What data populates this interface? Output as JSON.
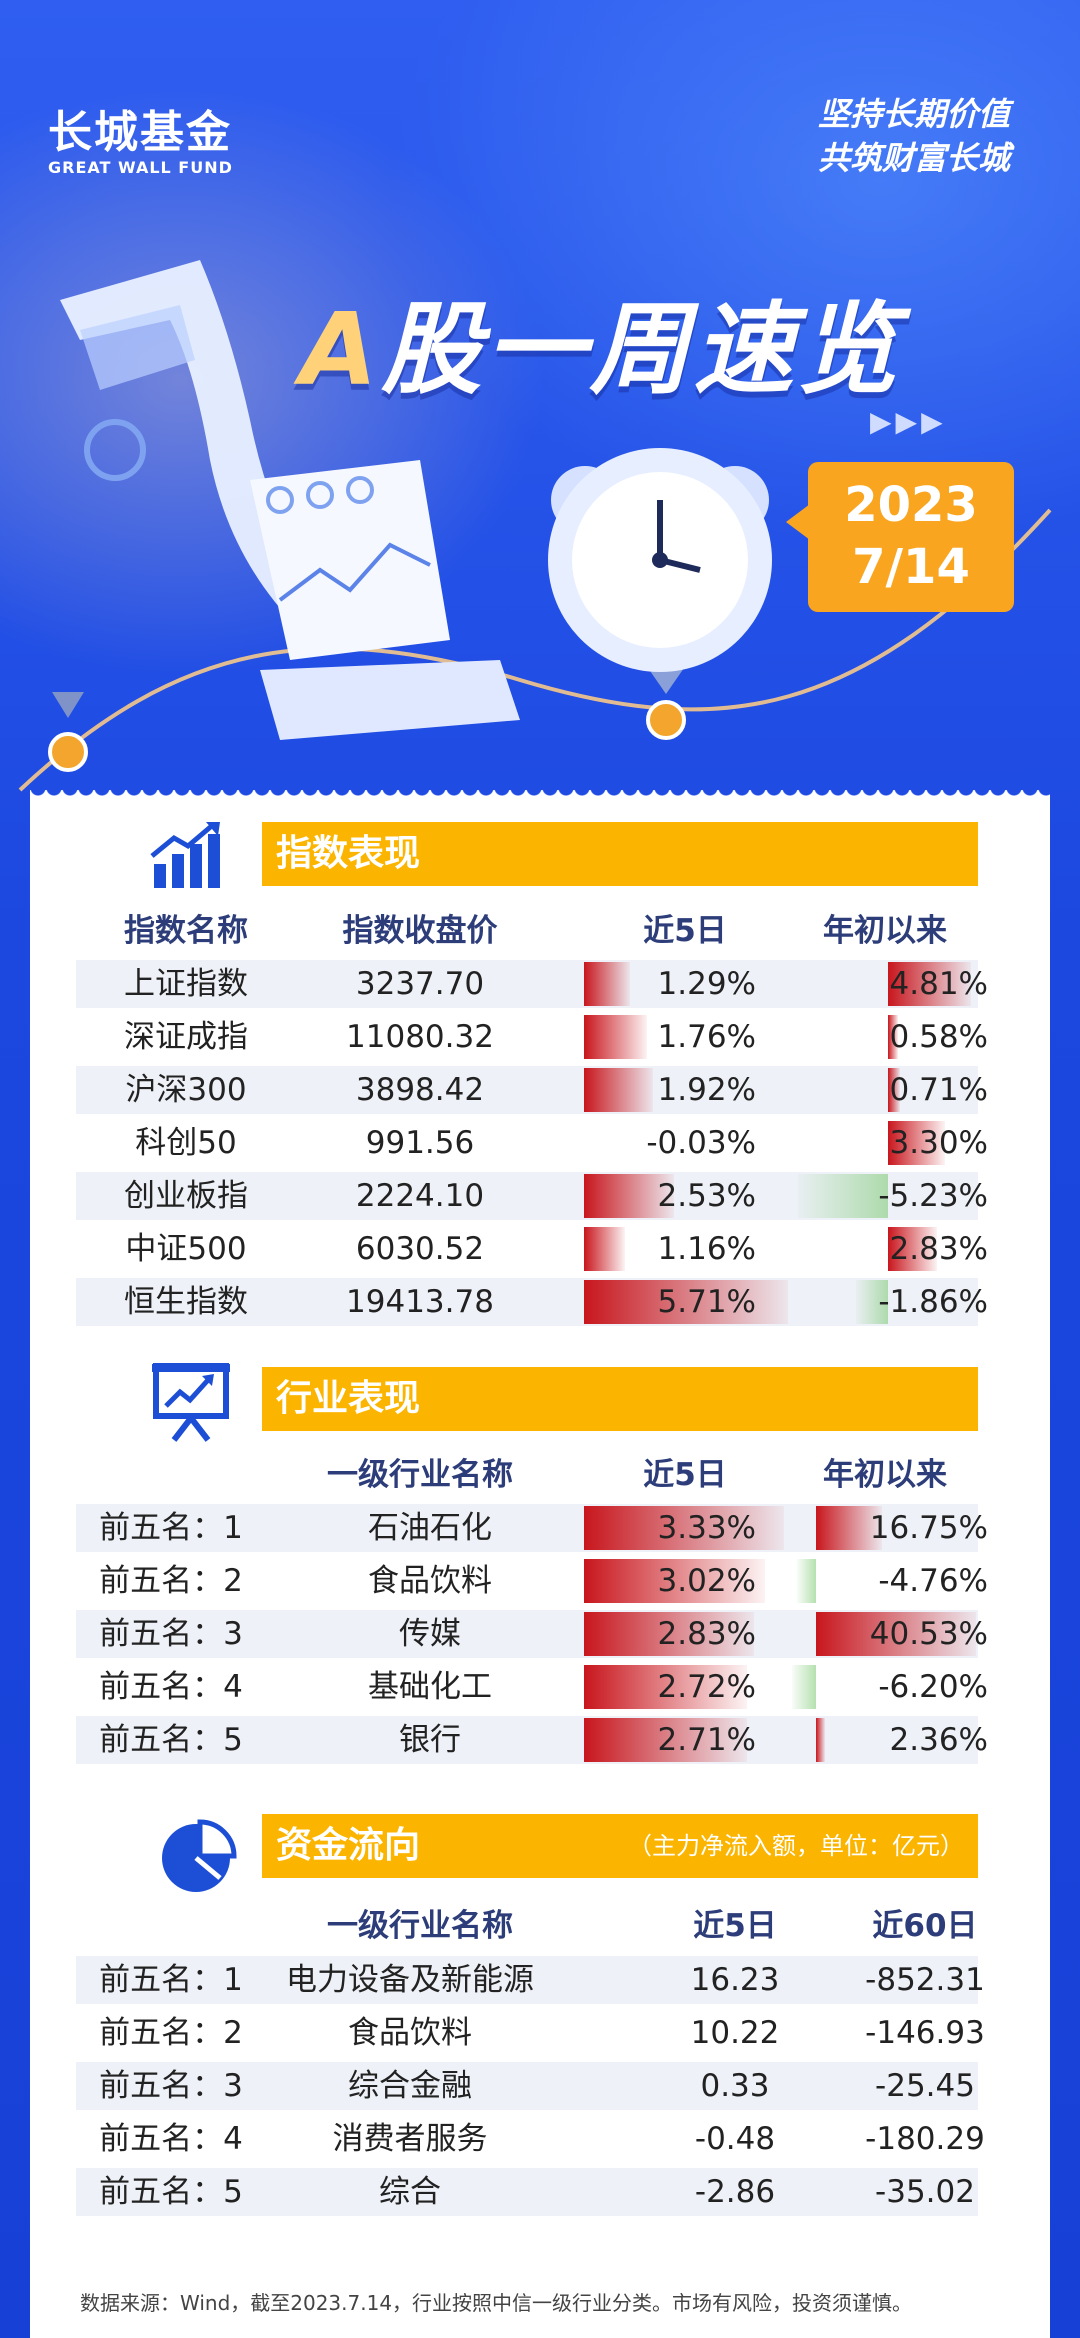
{
  "brand": {
    "name_cn": "长城基金",
    "name_en": "GREAT WALL FUND"
  },
  "slogan": [
    "坚持长期价值",
    "共筑财富长城"
  ],
  "headline": {
    "prefix": "A",
    "rest": "股一周速览"
  },
  "date": {
    "year": "2023",
    "day": "7/14"
  },
  "colors": {
    "background": "#1f52e6",
    "accent": "#fbb500",
    "date_box": "#f9a51f",
    "up": "#c8161d",
    "down": "#5fbf5a",
    "header_text": "#2d3d7a"
  },
  "index_section": {
    "icon": "bar-chart-growth-icon",
    "title": "指数表现",
    "headers": [
      "指数名称",
      "指数收盘价",
      "近5日",
      "年初以来"
    ],
    "rows": [
      {
        "name": "上证指数",
        "close": "3237.70",
        "w5": "1.29%",
        "ytd": "4.81%",
        "w5_val": 1.29,
        "ytd_val": 4.81
      },
      {
        "name": "深证成指",
        "close": "11080.32",
        "w5": "1.76%",
        "ytd": "0.58%",
        "w5_val": 1.76,
        "ytd_val": 0.58
      },
      {
        "name": "沪深300",
        "close": "3898.42",
        "w5": "1.92%",
        "ytd": "0.71%",
        "w5_val": 1.92,
        "ytd_val": 0.71
      },
      {
        "name": "科创50",
        "close": "991.56",
        "w5": "-0.03%",
        "ytd": "3.30%",
        "w5_val": -0.03,
        "ytd_val": 3.3
      },
      {
        "name": "创业板指",
        "close": "2224.10",
        "w5": "2.53%",
        "ytd": "-5.23%",
        "w5_val": 2.53,
        "ytd_val": -5.23
      },
      {
        "name": "中证500",
        "close": "6030.52",
        "w5": "1.16%",
        "ytd": "2.83%",
        "w5_val": 1.16,
        "ytd_val": 2.83
      },
      {
        "name": "恒生指数",
        "close": "19413.78",
        "w5": "5.71%",
        "ytd": "-1.86%",
        "w5_val": 5.71,
        "ytd_val": -1.86
      }
    ]
  },
  "industry_section": {
    "icon": "presentation-board-icon",
    "title": "行业表现",
    "headers": [
      "一级行业名称",
      "近5日",
      "年初以来"
    ],
    "rows": [
      {
        "rank": "前五名：1",
        "name": "石油石化",
        "w5": "3.33%",
        "ytd": "16.75%",
        "w5_val": 3.33,
        "ytd_val": 16.75
      },
      {
        "rank": "前五名：2",
        "name": "食品饮料",
        "w5": "3.02%",
        "ytd": "-4.76%",
        "w5_val": 3.02,
        "ytd_val": -4.76
      },
      {
        "rank": "前五名：3",
        "name": "传媒",
        "w5": "2.83%",
        "ytd": "40.53%",
        "w5_val": 2.83,
        "ytd_val": 40.53
      },
      {
        "rank": "前五名：4",
        "name": "基础化工",
        "w5": "2.72%",
        "ytd": "-6.20%",
        "w5_val": 2.72,
        "ytd_val": -6.2
      },
      {
        "rank": "前五名：5",
        "name": "银行",
        "w5": "2.71%",
        "ytd": "2.36%",
        "w5_val": 2.71,
        "ytd_val": 2.36
      }
    ]
  },
  "flow_section": {
    "icon": "pie-chart-icon",
    "title": "资金流向",
    "note": "（主力净流入额，单位：亿元）",
    "headers": [
      "一级行业名称",
      "近5日",
      "近60日"
    ],
    "rows": [
      {
        "rank": "前五名：1",
        "name": "电力设备及新能源",
        "w5": "16.23",
        "d60": "-852.31"
      },
      {
        "rank": "前五名：2",
        "name": "食品饮料",
        "w5": "10.22",
        "d60": "-146.93"
      },
      {
        "rank": "前五名：3",
        "name": "综合金融",
        "w5": "0.33",
        "d60": "-25.45"
      },
      {
        "rank": "前五名：4",
        "name": "消费者服务",
        "w5": "-0.48",
        "d60": "-180.29"
      },
      {
        "rank": "前五名：5",
        "name": "综合",
        "w5": "-2.86",
        "d60": "-35.02"
      }
    ]
  },
  "footer": "数据来源：Wind，截至2023.7.14，行业按照中信一级行业分类。市场有风险，投资须谨慎。"
}
